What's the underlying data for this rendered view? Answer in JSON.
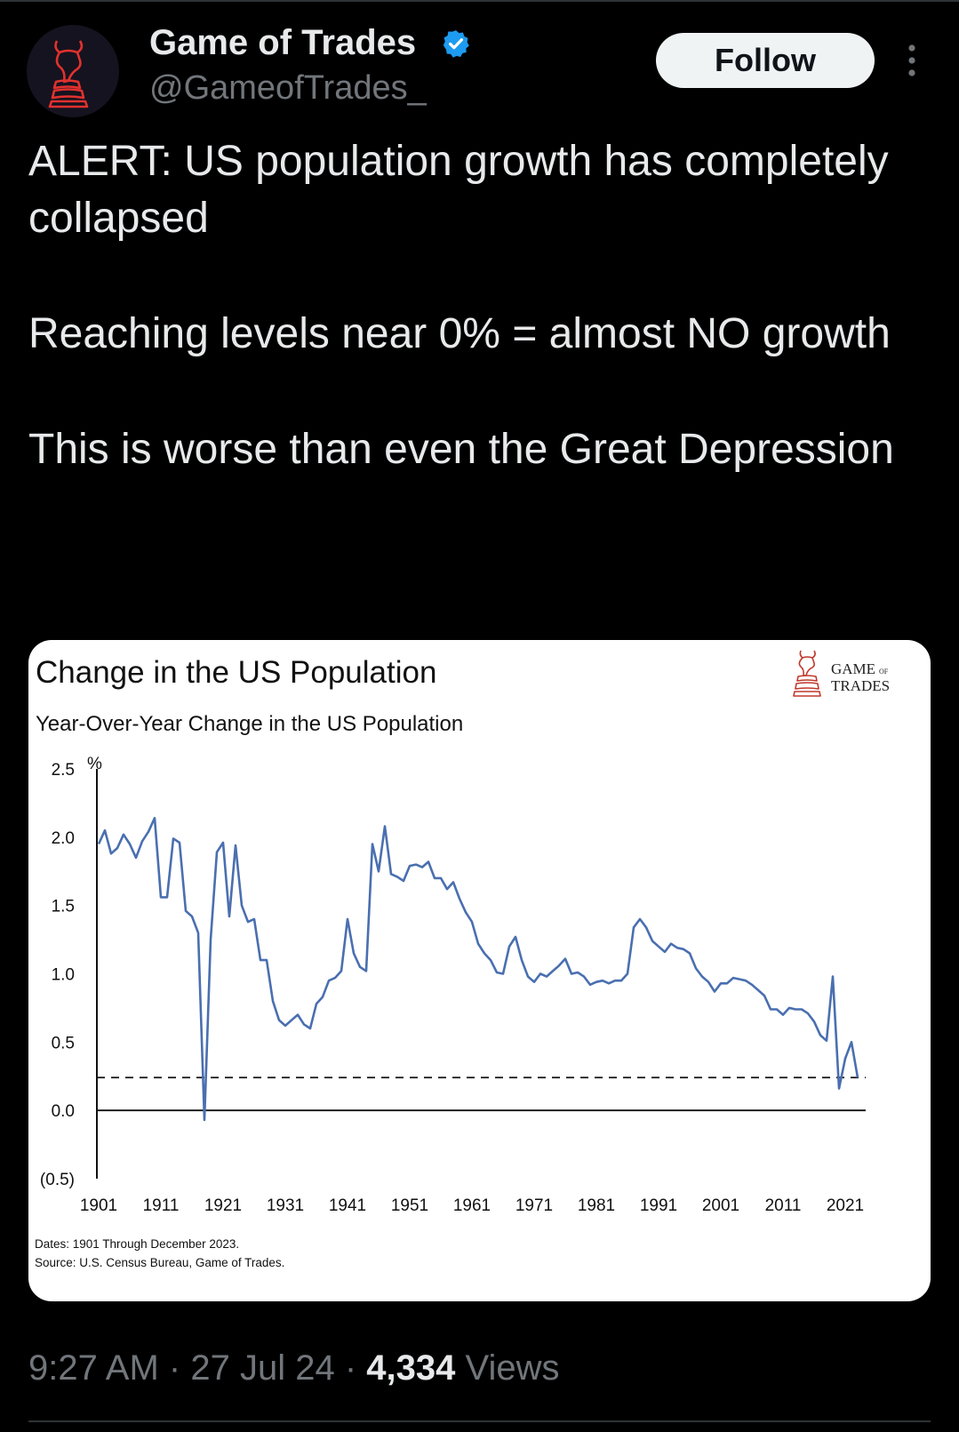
{
  "account": {
    "name": "Game of Trades",
    "handle": "@GameofTrades_",
    "follow_label": "Follow",
    "verified_color": "#1d9bf0"
  },
  "icons": [
    "bull-knight-logo-icon",
    "verified-badge-icon",
    "more-options-icon"
  ],
  "tweet": {
    "paragraphs": [
      "ALERT: US population growth has completely collapsed",
      "Reaching levels near 0% = almost NO growth",
      "This is worse than even the Great Depression"
    ]
  },
  "meta": {
    "time": "9:27 AM",
    "separator": "·",
    "date": "27 Jul 24",
    "views": "4,334",
    "views_label": "Views"
  },
  "chart_card": {
    "brand_logo_text": [
      "GAME",
      "OF",
      "TRADES"
    ],
    "footnote_dates": "Dates: 1901 Through December 2023.",
    "footnote_source": "Source: U.S. Census Bureau, Game of Trades."
  },
  "chart_data": {
    "type": "line",
    "title": "Change in the US Population",
    "subtitle": "Year-Over-Year Change in the US Population",
    "ylabel": "%",
    "xlim": [
      1901,
      2024
    ],
    "ylim": [
      -0.5,
      2.5
    ],
    "yticks": [
      2.5,
      2.0,
      1.5,
      1.0,
      0.5,
      0.0,
      -0.5
    ],
    "ytick_labels": [
      "2.5",
      "2.0",
      "1.5",
      "1.0",
      "0.5",
      "0.0",
      "(0.5)"
    ],
    "xticks": [
      1901,
      1911,
      1921,
      1931,
      1941,
      1951,
      1961,
      1971,
      1981,
      1991,
      2001,
      2011,
      2021
    ],
    "line_color": "#4a6fb0",
    "reference_lines": [
      {
        "value": 0.0,
        "style": "solid"
      },
      {
        "value": 0.24,
        "style": "dashed"
      }
    ],
    "grid": false,
    "legend": "none",
    "series": [
      {
        "x": [
          1901,
          1902,
          1903,
          1904,
          1905,
          1906,
          1907,
          1908,
          1909,
          1910,
          1911,
          1912,
          1913,
          1914,
          1915,
          1916,
          1917,
          1918,
          1919,
          1920,
          1921,
          1922,
          1923,
          1924,
          1925,
          1926,
          1927,
          1928,
          1929,
          1930,
          1931,
          1932,
          1933,
          1934,
          1935,
          1936,
          1937,
          1938,
          1939,
          1940,
          1941,
          1942,
          1943,
          1944,
          1945,
          1946,
          1947,
          1948,
          1949,
          1950,
          1951,
          1952,
          1953,
          1954,
          1955,
          1956,
          1957,
          1958,
          1959,
          1960,
          1961,
          1962,
          1963,
          1964,
          1965,
          1966,
          1967,
          1968,
          1969,
          1970,
          1971,
          1972,
          1973,
          1974,
          1975,
          1976,
          1977,
          1978,
          1979,
          1980,
          1981,
          1982,
          1983,
          1984,
          1985,
          1986,
          1987,
          1988,
          1989,
          1990,
          1991,
          1992,
          1993,
          1994,
          1995,
          1996,
          1997,
          1998,
          1999,
          2000,
          2001,
          2002,
          2003,
          2004,
          2005,
          2006,
          2007,
          2008,
          2009,
          2010,
          2011,
          2012,
          2013,
          2014,
          2015,
          2016,
          2017,
          2018,
          2019,
          2020,
          2021,
          2022,
          2023
        ],
        "values": [
          1.95,
          2.05,
          1.88,
          1.92,
          2.02,
          1.95,
          1.85,
          1.97,
          2.04,
          2.14,
          1.56,
          1.56,
          1.99,
          1.96,
          1.46,
          1.42,
          1.3,
          -0.07,
          1.25,
          1.89,
          1.96,
          1.42,
          1.94,
          1.5,
          1.38,
          1.4,
          1.1,
          1.1,
          0.8,
          0.66,
          0.62,
          0.66,
          0.7,
          0.63,
          0.6,
          0.78,
          0.83,
          0.95,
          0.97,
          1.02,
          1.4,
          1.15,
          1.05,
          1.02,
          1.95,
          1.75,
          2.08,
          1.73,
          1.71,
          1.68,
          1.79,
          1.8,
          1.78,
          1.82,
          1.7,
          1.7,
          1.62,
          1.67,
          1.55,
          1.45,
          1.38,
          1.22,
          1.15,
          1.1,
          1.01,
          1.0,
          1.2,
          1.27,
          1.1,
          0.98,
          0.94,
          1.0,
          0.98,
          1.02,
          1.06,
          1.11,
          1.0,
          1.01,
          0.98,
          0.92,
          0.94,
          0.95,
          0.93,
          0.95,
          0.95,
          1.0,
          1.34,
          1.4,
          1.34,
          1.24,
          1.2,
          1.16,
          1.22,
          1.19,
          1.18,
          1.15,
          1.04,
          0.98,
          0.94,
          0.87,
          0.93,
          0.93,
          0.97,
          0.96,
          0.95,
          0.92,
          0.88,
          0.84,
          0.74,
          0.74,
          0.7,
          0.75,
          0.74,
          0.74,
          0.71,
          0.65,
          0.55,
          0.51,
          0.98,
          0.16,
          0.38,
          0.5,
          0.24
        ]
      }
    ]
  }
}
